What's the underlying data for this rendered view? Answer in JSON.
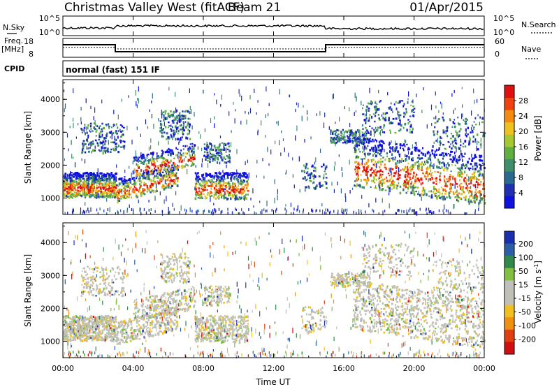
{
  "header": {
    "title": "Christmas Valley West (fitACF)",
    "beam": "Beam 21",
    "date": "01/Apr/2015"
  },
  "top_panels": {
    "nsky_label": "N.Sky",
    "nsearch_label": "N.Search",
    "nsky_ticks": [
      "10^5",
      "10^0"
    ],
    "nsearch_ticks": [
      "10^5",
      "10^0"
    ],
    "freq_label_line1": "Freq.",
    "freq_label_line2": "[MHz]",
    "freq_ticks": [
      "18",
      "8"
    ],
    "nave_label": "Nave",
    "nave_ticks": [
      "60",
      "0"
    ],
    "cpid_label": "CPID",
    "cpid_text": "normal (fast) 151 IF"
  },
  "chart_data": [
    {
      "type": "heatmap",
      "panel": "power",
      "ylabel": "Slant Range [km]",
      "xlim_hours": [
        0,
        24
      ],
      "ylim": [
        500,
        4600
      ],
      "yticks": [
        "1000",
        "2000",
        "3000",
        "4000"
      ],
      "colorbar": {
        "label": "Power [dB]",
        "ticks": [
          "28",
          "24",
          "20",
          "16",
          "12",
          "8",
          "4"
        ],
        "colors": [
          "#1010e0",
          "#2030b0",
          "#2a6a90",
          "#3f8f6a",
          "#60b040",
          "#a8c830",
          "#f0c020",
          "#f58a10",
          "#ef4010",
          "#e01010"
        ]
      }
    },
    {
      "type": "heatmap",
      "panel": "velocity",
      "ylabel": "Slant Range [km]",
      "xlabel": "Time UT",
      "xlim_hours": [
        0,
        24
      ],
      "ylim": [
        500,
        4600
      ],
      "yticks": [
        "1000",
        "2000",
        "3000",
        "4000"
      ],
      "xticks": [
        "00:00",
        "04:00",
        "08:00",
        "12:00",
        "16:00",
        "20:00",
        "00:00"
      ],
      "colorbar": {
        "label": "Velocity [m s-1]",
        "ticks": [
          "200",
          "100",
          "50",
          "15",
          "-15",
          "-50",
          "-100",
          "-200"
        ],
        "colors": [
          "#1a2fb0",
          "#2a5fa8",
          "#2f8a4a",
          "#80c040",
          "#c0c0b8",
          "#c0c0b8",
          "#f0c020",
          "#f09010",
          "#e04010",
          "#d01010"
        ]
      }
    }
  ]
}
